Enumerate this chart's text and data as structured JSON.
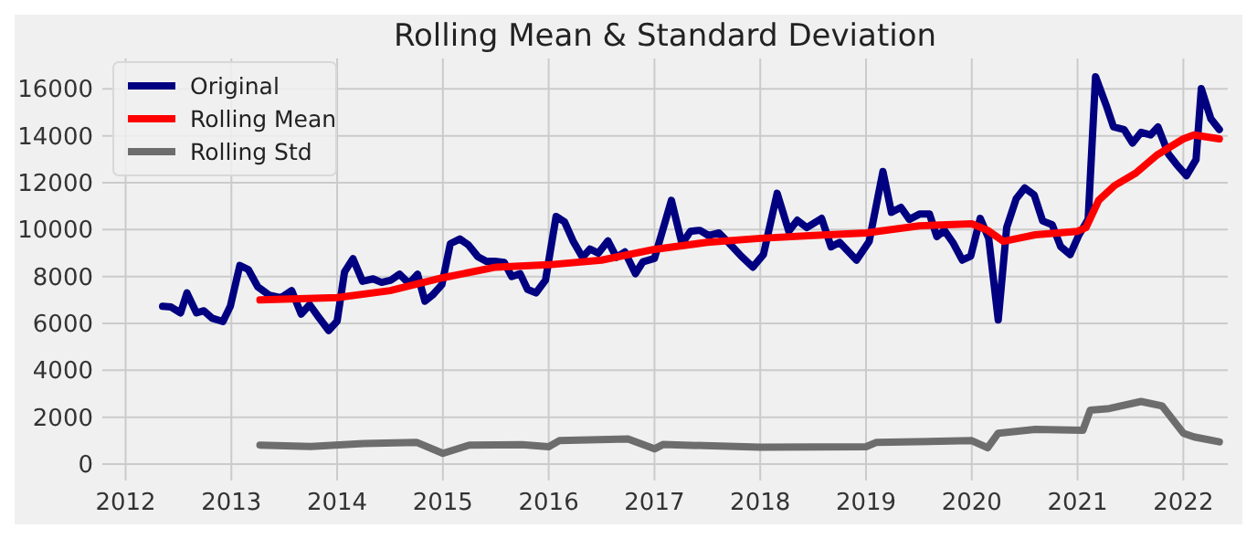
{
  "chart_data": {
    "type": "line",
    "title": "Rolling Mean & Standard Deviation",
    "xlim": [
      2011.78,
      2022.42
    ],
    "ylim": [
      -700,
      17300
    ],
    "xticks": [
      2012,
      2013,
      2014,
      2015,
      2016,
      2017,
      2018,
      2019,
      2020,
      2021,
      2022
    ],
    "yticks": [
      0,
      2000,
      4000,
      6000,
      8000,
      10000,
      12000,
      14000,
      16000
    ],
    "grid": true,
    "legend": "top left",
    "marker": "none",
    "line_style": "solid",
    "series": [
      {
        "name": "Original",
        "color": "#000080",
        "x": [
          2012.35,
          2012.43,
          2012.52,
          2012.58,
          2012.67,
          2012.74,
          2012.82,
          2012.92,
          2012.99,
          2013.08,
          2013.16,
          2013.25,
          2013.36,
          2013.47,
          2013.57,
          2013.66,
          2013.74,
          2013.82,
          2013.92,
          2014.0,
          2014.07,
          2014.15,
          2014.24,
          2014.34,
          2014.42,
          2014.51,
          2014.59,
          2014.68,
          2014.76,
          2014.83,
          2014.9,
          2014.99,
          2015.07,
          2015.16,
          2015.24,
          2015.33,
          2015.41,
          2015.49,
          2015.58,
          2015.65,
          2015.73,
          2015.8,
          2015.88,
          2015.97,
          2016.07,
          2016.15,
          2016.23,
          2016.32,
          2016.39,
          2016.47,
          2016.56,
          2016.64,
          2016.72,
          2016.82,
          2016.89,
          2017.0,
          2017.16,
          2017.26,
          2017.34,
          2017.43,
          2017.51,
          2017.61,
          2017.71,
          2017.82,
          2017.93,
          2018.03,
          2018.16,
          2018.27,
          2018.35,
          2018.44,
          2018.58,
          2018.67,
          2018.75,
          2018.91,
          2019.03,
          2019.16,
          2019.24,
          2019.33,
          2019.41,
          2019.51,
          2019.6,
          2019.67,
          2019.74,
          2019.82,
          2019.91,
          2019.99,
          2020.08,
          2020.16,
          2020.25,
          2020.33,
          2020.42,
          2020.5,
          2020.59,
          2020.67,
          2020.76,
          2020.84,
          2020.93,
          2021.01,
          2021.1,
          2021.17,
          2021.27,
          2021.34,
          2021.44,
          2021.52,
          2021.6,
          2021.69,
          2021.76,
          2021.86,
          2021.94,
          2022.03,
          2022.12,
          2022.17,
          2022.26,
          2022.34
        ],
        "values": [
          6730,
          6700,
          6450,
          7300,
          6450,
          6540,
          6220,
          6080,
          6730,
          8470,
          8300,
          7560,
          7200,
          7100,
          7400,
          6400,
          6800,
          6300,
          5700,
          6100,
          8200,
          8760,
          7800,
          7900,
          7750,
          7850,
          8100,
          7700,
          8100,
          6950,
          7200,
          7650,
          9400,
          9600,
          9350,
          8850,
          8650,
          8650,
          8600,
          8000,
          8120,
          7450,
          7300,
          7850,
          10560,
          10330,
          9520,
          8820,
          9170,
          9000,
          9520,
          8820,
          9050,
          8120,
          8630,
          8770,
          11250,
          9400,
          9930,
          9970,
          9750,
          9860,
          9400,
          8870,
          8400,
          8940,
          11550,
          9930,
          10400,
          10090,
          10480,
          9270,
          9460,
          8700,
          9500,
          12480,
          10740,
          10950,
          10440,
          10670,
          10670,
          9700,
          9970,
          9460,
          8700,
          8870,
          10480,
          9630,
          6150,
          10090,
          11320,
          11780,
          11480,
          10370,
          10210,
          9280,
          8940,
          9750,
          10440,
          16520,
          15310,
          14380,
          14270,
          13690,
          14150,
          14040,
          14380,
          13220,
          12760,
          12300,
          12990,
          16010,
          14730,
          14270
        ]
      },
      {
        "name": "Rolling Mean",
        "color": "#ff0000",
        "x": [
          2013.27,
          2014.0,
          2014.5,
          2015.0,
          2015.5,
          2016.0,
          2016.5,
          2017.0,
          2017.5,
          2018.0,
          2018.5,
          2019.0,
          2019.5,
          2020.0,
          2020.15,
          2020.3,
          2020.6,
          2021.0,
          2021.08,
          2021.2,
          2021.35,
          2021.55,
          2021.75,
          2022.0,
          2022.1,
          2022.34
        ],
        "values": [
          7000,
          7100,
          7400,
          7950,
          8400,
          8500,
          8700,
          9160,
          9460,
          9630,
          9750,
          9860,
          10160,
          10250,
          9970,
          9500,
          9780,
          9930,
          10090,
          11250,
          11880,
          12410,
          13180,
          13870,
          14040,
          13870
        ]
      },
      {
        "name": "Rolling Std",
        "color": "#6d6d6d",
        "x": [
          2013.27,
          2013.75,
          2014.25,
          2014.75,
          2015.0,
          2015.25,
          2015.75,
          2016.0,
          2016.1,
          2016.75,
          2017.0,
          2017.08,
          2018.0,
          2019.0,
          2019.1,
          2020.0,
          2020.15,
          2020.25,
          2020.6,
          2021.05,
          2021.12,
          2021.3,
          2021.6,
          2021.8,
          2022.0,
          2022.1,
          2022.34
        ],
        "values": [
          810,
          750,
          880,
          930,
          460,
          810,
          830,
          740,
          1000,
          1070,
          650,
          835,
          720,
          740,
          930,
          1000,
          700,
          1320,
          1480,
          1440,
          2300,
          2370,
          2670,
          2480,
          1320,
          1160,
          950
        ]
      }
    ]
  }
}
